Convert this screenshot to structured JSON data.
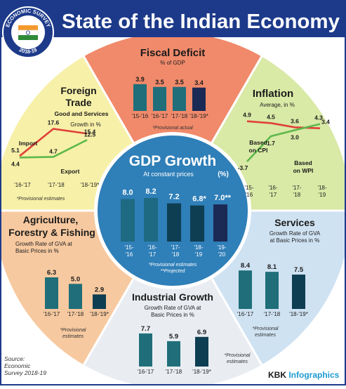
{
  "header": {
    "title": "State of the Indian Economy",
    "badge_text_top": "ECONOMIC SURVEY",
    "badge_text_year": "2018-19"
  },
  "colors": {
    "header_bg": "#1d3a8a",
    "fiscal": "#f08a6b",
    "inflation": "#d9e9a6",
    "services": "#cfe2f2",
    "industrial": "#e9edf2",
    "agri": "#f7c9a0",
    "foreign": "#f7f0a8",
    "center": "#2f7fb8",
    "bar_teal": "#1f6e7a",
    "bar_navy": "#1b2a55",
    "bar_dark": "#0e3e52"
  },
  "footer": {
    "source_line1": "Source:",
    "source_line2": "Economic",
    "source_line3": "Survey 2018-19",
    "brand_a": "KBK ",
    "brand_b": "Infographics"
  },
  "chart_data": [
    {
      "id": "fiscal",
      "type": "bar",
      "title": "Fiscal Deficit",
      "subtitle": "% of GDP",
      "categories": [
        "'15-'16",
        "'16-'17",
        "'17-'18",
        "'18-'19*"
      ],
      "value_labels": [
        "3.9",
        "3.5",
        "3.5",
        "3.4"
      ],
      "values": [
        3.9,
        3.5,
        3.5,
        3.4
      ],
      "note": "*Provisional actual"
    },
    {
      "id": "inflation",
      "type": "line",
      "title": "Inflation",
      "subtitle": "Average, in %",
      "categories": [
        "'15-'16",
        "'16-'17",
        "'17-'18",
        "'18-'19"
      ],
      "series": [
        {
          "name": "Based on CPI",
          "values": [
            4.9,
            4.5,
            3.6,
            3.4
          ],
          "value_labels": [
            "4.9",
            "4.5",
            "3.6",
            "3.4"
          ],
          "color": "#e0403a"
        },
        {
          "name": "Based on WPI",
          "values": [
            -3.7,
            1.7,
            3.0,
            4.3
          ],
          "value_labels": [
            "-3.7",
            "1.7",
            "3.0",
            "4.3"
          ],
          "color": "#5cb84a"
        }
      ]
    },
    {
      "id": "services",
      "type": "bar",
      "title": "Services",
      "subtitle": "Growth Rate of GVA at Basic Prices in %",
      "categories": [
        "'16-'17",
        "'17-'18",
        "'18-'19*"
      ],
      "value_labels": [
        "8.4",
        "8.1",
        "7.5"
      ],
      "values": [
        8.4,
        8.1,
        7.5
      ],
      "note": "*Provisional estimates"
    },
    {
      "id": "industrial",
      "type": "bar",
      "title": "Industrial Growth",
      "subtitle": "Growth Rate of GVA at Basic Prices in %",
      "categories": [
        "'16-'17",
        "'17-'18",
        "'18-'19*"
      ],
      "value_labels": [
        "7.7",
        "5.9",
        "6.9"
      ],
      "values": [
        7.7,
        5.9,
        6.9
      ],
      "note": "*Provisional estimates"
    },
    {
      "id": "agri",
      "type": "bar",
      "title": "Agriculture, Forestry & Fishing",
      "subtitle": "Growth Rate of GVA at Basic Prices in %",
      "categories": [
        "'16-'17",
        "'17-'18",
        "'18-'19*"
      ],
      "value_labels": [
        "6.3",
        "5.0",
        "2.9"
      ],
      "values": [
        6.3,
        5.0,
        2.9
      ],
      "note": "*Provisional estimates"
    },
    {
      "id": "foreign",
      "type": "line",
      "title": "Foreign Trade",
      "subtitle": "Good and Services",
      "unit_label": "Growth in %",
      "categories": [
        "'16-'17",
        "'17-'18",
        "'18-'19*"
      ],
      "series": [
        {
          "name": "Import",
          "values": [
            5.1,
            17.6,
            15.4
          ],
          "value_labels": [
            "5.1",
            "17.6",
            "15.4"
          ],
          "color": "#e0403a"
        },
        {
          "name": "Export",
          "values": [
            4.4,
            4.7,
            12.5
          ],
          "value_labels": [
            "4.4",
            "4.7",
            "12.5"
          ],
          "color": "#5cb84a"
        }
      ],
      "note": "*Provisional estimates"
    },
    {
      "id": "gdp",
      "type": "bar",
      "title": "GDP Growth",
      "subtitle": "At constant prices",
      "unit": "(%)",
      "categories": [
        "'15-'16",
        "'16-'17",
        "'17-'18",
        "'18-'19",
        "'19-'20"
      ],
      "value_labels": [
        "8.0",
        "8.2",
        "7.2",
        "6.8*",
        "7.0**"
      ],
      "values": [
        8.0,
        8.2,
        7.2,
        6.8,
        7.0
      ],
      "notes": [
        "*Provisional estimates",
        "**Projected"
      ]
    }
  ]
}
